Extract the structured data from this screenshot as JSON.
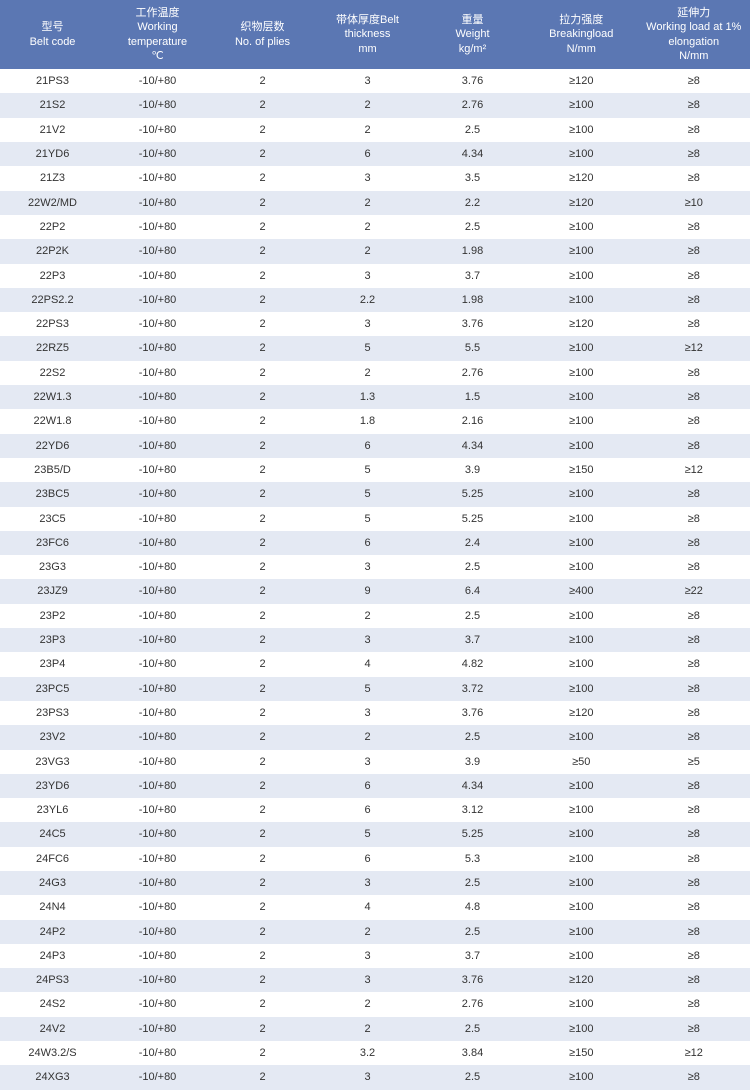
{
  "table": {
    "type": "table",
    "header_bg": "#5b77b3",
    "header_fg": "#ffffff",
    "row_bg_odd": "#ffffff",
    "row_bg_even": "#e4e9f3",
    "text_color": "#333333",
    "font_size_header": 11,
    "font_size_body": 11,
    "col_widths_pct": [
      14,
      14,
      14,
      14,
      14,
      15,
      15
    ],
    "columns": [
      {
        "cn": "型号",
        "en": "Belt code"
      },
      {
        "cn": "工作温度",
        "en": "Working temperature",
        "unit": "℃"
      },
      {
        "cn": "织物层数",
        "en": "No. of plies"
      },
      {
        "cn": "带体厚度Belt",
        "en": "thickness",
        "unit": "mm"
      },
      {
        "cn": "重量",
        "en": "Weight",
        "unit": "kg/m²"
      },
      {
        "cn": "拉力强度",
        "en": "Breakingload",
        "unit": "N/mm"
      },
      {
        "cn": "延伸力",
        "en": "Working load at 1% elongation",
        "unit": "N/mm"
      }
    ],
    "rows": [
      [
        "21PS3",
        "-10/+80",
        "2",
        "3",
        "3.76",
        "≥120",
        "≥8"
      ],
      [
        "21S2",
        "-10/+80",
        "2",
        "2",
        "2.76",
        "≥100",
        "≥8"
      ],
      [
        "21V2",
        "-10/+80",
        "2",
        "2",
        "2.5",
        "≥100",
        "≥8"
      ],
      [
        "21YD6",
        "-10/+80",
        "2",
        "6",
        "4.34",
        "≥100",
        "≥8"
      ],
      [
        "21Z3",
        "-10/+80",
        "2",
        "3",
        "3.5",
        "≥120",
        "≥8"
      ],
      [
        "22W2/MD",
        "-10/+80",
        "2",
        "2",
        "2.2",
        "≥120",
        "≥10"
      ],
      [
        "22P2",
        "-10/+80",
        "2",
        "2",
        "2.5",
        "≥100",
        "≥8"
      ],
      [
        "22P2K",
        "-10/+80",
        "2",
        "2",
        "1.98",
        "≥100",
        "≥8"
      ],
      [
        "22P3",
        "-10/+80",
        "2",
        "3",
        "3.7",
        "≥100",
        "≥8"
      ],
      [
        "22PS2.2",
        "-10/+80",
        "2",
        "2.2",
        "1.98",
        "≥100",
        "≥8"
      ],
      [
        "22PS3",
        "-10/+80",
        "2",
        "3",
        "3.76",
        "≥120",
        "≥8"
      ],
      [
        "22RZ5",
        "-10/+80",
        "2",
        "5",
        "5.5",
        "≥100",
        "≥12"
      ],
      [
        "22S2",
        "-10/+80",
        "2",
        "2",
        "2.76",
        "≥100",
        "≥8"
      ],
      [
        "22W1.3",
        "-10/+80",
        "2",
        "1.3",
        "1.5",
        "≥100",
        "≥8"
      ],
      [
        "22W1.8",
        "-10/+80",
        "2",
        "1.8",
        "2.16",
        "≥100",
        "≥8"
      ],
      [
        "22YD6",
        "-10/+80",
        "2",
        "6",
        "4.34",
        "≥100",
        "≥8"
      ],
      [
        "23B5/D",
        "-10/+80",
        "2",
        "5",
        "3.9",
        "≥150",
        "≥12"
      ],
      [
        "23BC5",
        "-10/+80",
        "2",
        "5",
        "5.25",
        "≥100",
        "≥8"
      ],
      [
        "23C5",
        "-10/+80",
        "2",
        "5",
        "5.25",
        "≥100",
        "≥8"
      ],
      [
        "23FC6",
        "-10/+80",
        "2",
        "6",
        "2.4",
        "≥100",
        "≥8"
      ],
      [
        "23G3",
        "-10/+80",
        "2",
        "3",
        "2.5",
        "≥100",
        "≥8"
      ],
      [
        "23JZ9",
        "-10/+80",
        "2",
        "9",
        "6.4",
        "≥400",
        "≥22"
      ],
      [
        "23P2",
        "-10/+80",
        "2",
        "2",
        "2.5",
        "≥100",
        "≥8"
      ],
      [
        "23P3",
        "-10/+80",
        "2",
        "3",
        "3.7",
        "≥100",
        "≥8"
      ],
      [
        "23P4",
        "-10/+80",
        "2",
        "4",
        "4.82",
        "≥100",
        "≥8"
      ],
      [
        "23PC5",
        "-10/+80",
        "2",
        "5",
        "3.72",
        "≥100",
        "≥8"
      ],
      [
        "23PS3",
        "-10/+80",
        "2",
        "3",
        "3.76",
        "≥120",
        "≥8"
      ],
      [
        "23V2",
        "-10/+80",
        "2",
        "2",
        "2.5",
        "≥100",
        "≥8"
      ],
      [
        "23VG3",
        "-10/+80",
        "2",
        "3",
        "3.9",
        "≥50",
        "≥5"
      ],
      [
        "23YD6",
        "-10/+80",
        "2",
        "6",
        "4.34",
        "≥100",
        "≥8"
      ],
      [
        "23YL6",
        "-10/+80",
        "2",
        "6",
        "3.12",
        "≥100",
        "≥8"
      ],
      [
        "24C5",
        "-10/+80",
        "2",
        "5",
        "5.25",
        "≥100",
        "≥8"
      ],
      [
        "24FC6",
        "-10/+80",
        "2",
        "6",
        "5.3",
        "≥100",
        "≥8"
      ],
      [
        "24G3",
        "-10/+80",
        "2",
        "3",
        "2.5",
        "≥100",
        "≥8"
      ],
      [
        "24N4",
        "-10/+80",
        "2",
        "4",
        "4.8",
        "≥100",
        "≥8"
      ],
      [
        "24P2",
        "-10/+80",
        "2",
        "2",
        "2.5",
        "≥100",
        "≥8"
      ],
      [
        "24P3",
        "-10/+80",
        "2",
        "3",
        "3.7",
        "≥100",
        "≥8"
      ],
      [
        "24PS3",
        "-10/+80",
        "2",
        "3",
        "3.76",
        "≥120",
        "≥8"
      ],
      [
        "24S2",
        "-10/+80",
        "2",
        "2",
        "2.76",
        "≥100",
        "≥8"
      ],
      [
        "24V2",
        "-10/+80",
        "2",
        "2",
        "2.5",
        "≥100",
        "≥8"
      ],
      [
        "24W3.2/S",
        "-10/+80",
        "2",
        "3.2",
        "3.84",
        "≥150",
        "≥12"
      ],
      [
        "24XG3",
        "-10/+80",
        "2",
        "3",
        "2.5",
        "≥100",
        "≥8"
      ]
    ]
  }
}
